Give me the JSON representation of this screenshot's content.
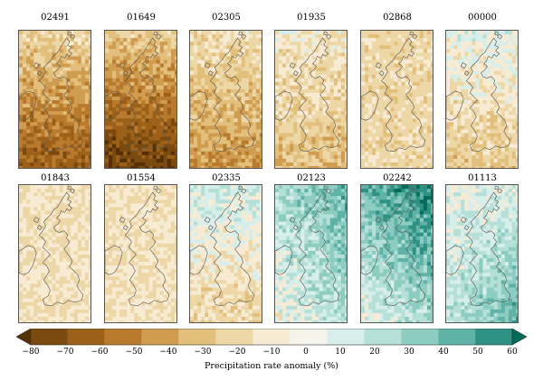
{
  "panels": [
    {
      "id": "02491",
      "level": -45,
      "pattern": "south"
    },
    {
      "id": "01649",
      "level": -55,
      "pattern": "south"
    },
    {
      "id": "02305",
      "level": -30,
      "pattern": "south"
    },
    {
      "id": "01935",
      "level": -20,
      "pattern": "south"
    },
    {
      "id": "02868",
      "level": -15,
      "pattern": "uniform"
    },
    {
      "id": "00000",
      "level": -10,
      "pattern": "mixed"
    },
    {
      "id": "01843",
      "level": -10,
      "pattern": "uniform"
    },
    {
      "id": "01554",
      "level": -10,
      "pattern": "uniform"
    },
    {
      "id": "02335",
      "level": -5,
      "pattern": "mixed"
    },
    {
      "id": "02123",
      "level": 15,
      "pattern": "north"
    },
    {
      "id": "02242",
      "level": 25,
      "pattern": "north"
    },
    {
      "id": "01113",
      "level": 20,
      "pattern": "south-wet"
    }
  ],
  "colorbar": {
    "ticks": [
      -80,
      -70,
      -60,
      -50,
      -40,
      -30,
      -20,
      -10,
      0,
      10,
      20,
      30,
      40,
      50,
      60
    ],
    "tick_labels": [
      "−80",
      "−70",
      "−60",
      "−50",
      "−40",
      "−30",
      "−20",
      "−10",
      "0",
      "10",
      "20",
      "30",
      "40",
      "50",
      "60"
    ],
    "colors": [
      "#543005",
      "#7a4a0f",
      "#9c6018",
      "#b87a2c",
      "#d09c4f",
      "#e2c07c",
      "#eed7a6",
      "#f7ecd3",
      "#f5f4ea",
      "#d8eeea",
      "#b5e0d8",
      "#8dcdc1",
      "#5fb3a6",
      "#2f9183",
      "#016c59"
    ],
    "label": "Precipitation rate anomaly (%)"
  }
}
